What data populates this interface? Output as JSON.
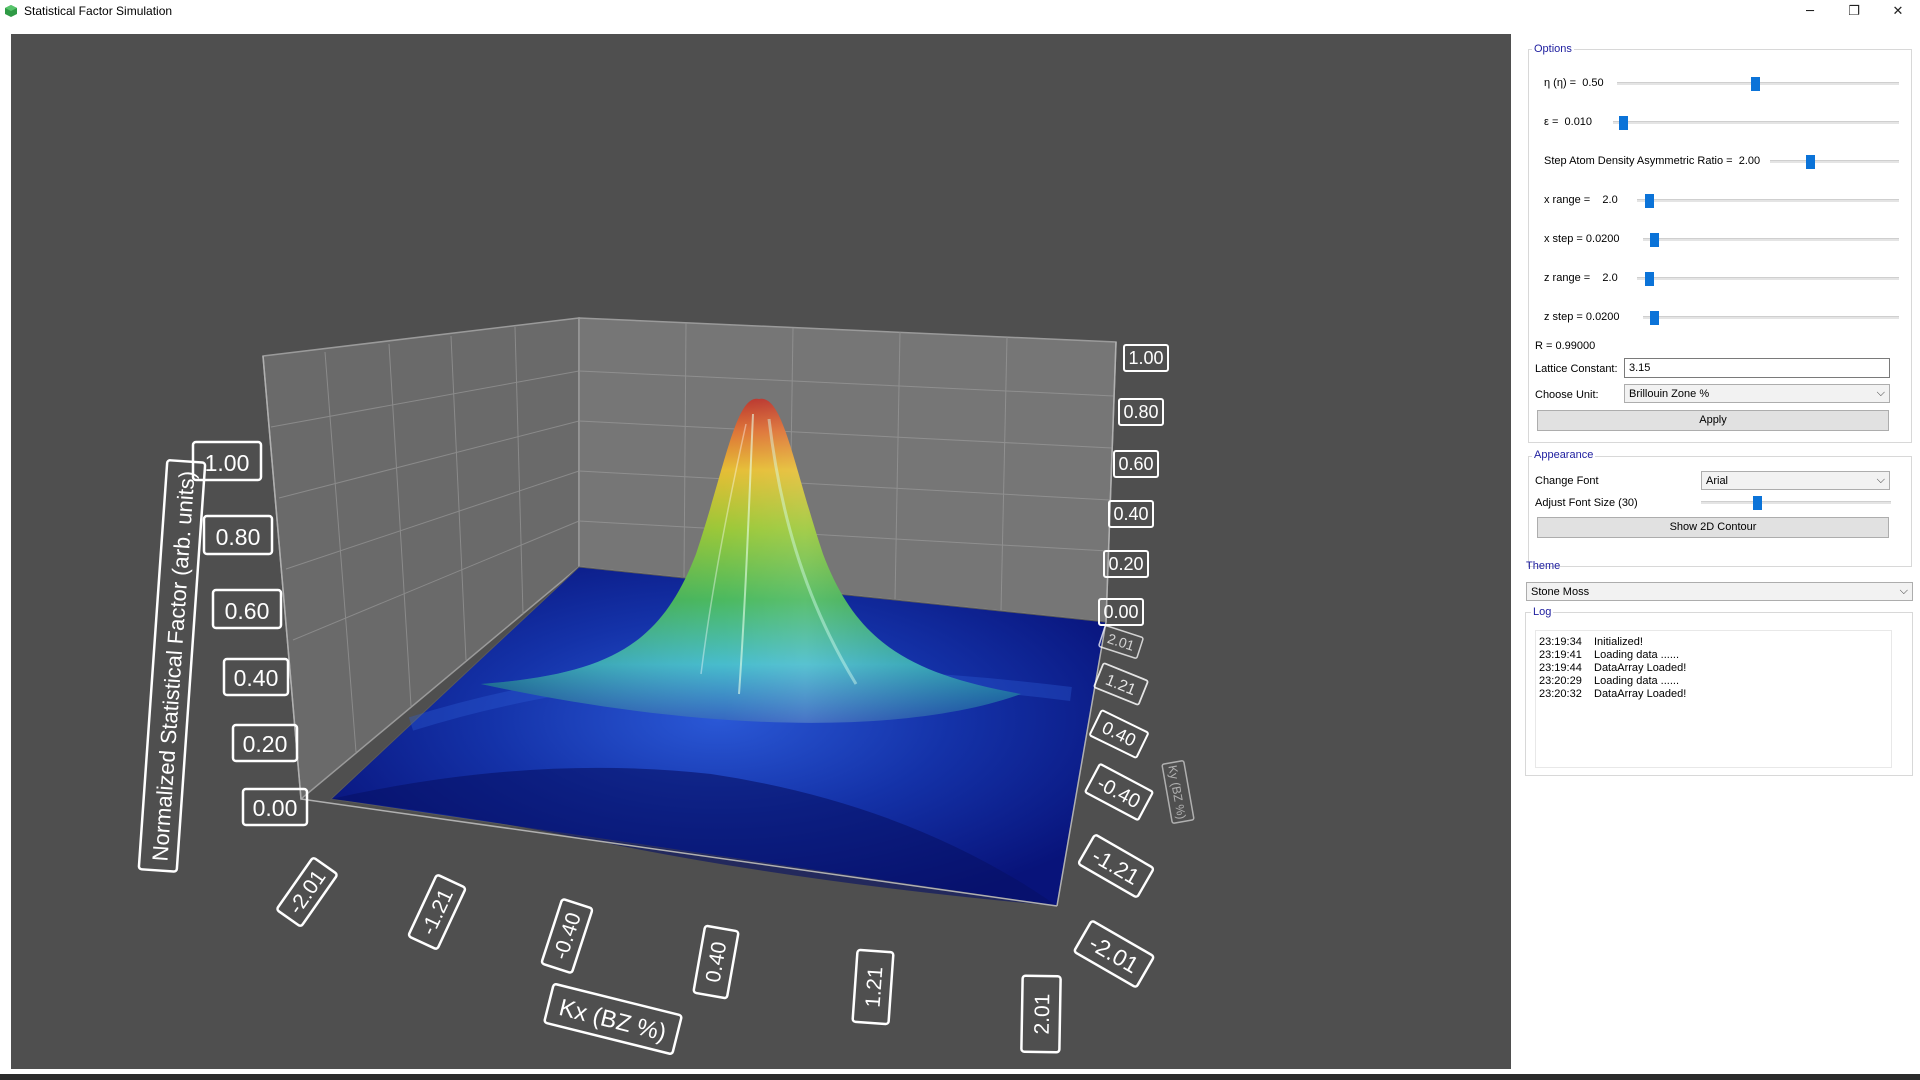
{
  "window": {
    "title": "Statistical Factor Simulation",
    "minimize": "─",
    "maximize": "❐",
    "close": "✕"
  },
  "plot": {
    "y_axis_title": "Normalized Statistical Factor (arb. units)",
    "x_axis_title": "Kx (BZ %)",
    "z_axis_title": "Ky (BZ %)",
    "y_ticks_left": [
      "1.00",
      "0.80",
      "0.60",
      "0.40",
      "0.20",
      "0.00"
    ],
    "y_ticks_right": [
      "1.00",
      "0.80",
      "0.60",
      "0.40",
      "0.20",
      "0.00"
    ],
    "x_ticks": [
      "-2.01",
      "-1.21",
      "-0.40",
      "0.40",
      "1.21",
      "2.01"
    ],
    "z_ticks": [
      "2.01",
      "1.21",
      "0.40",
      "-0.40",
      "-1.21",
      "-2.01"
    ]
  },
  "options": {
    "title": "Options",
    "eta": {
      "label": "η (η) =",
      "value": "0.50",
      "level": 0.49
    },
    "epsilon": {
      "label": "ε =",
      "value": "0.010",
      "level": 0.02
    },
    "step_ratio": {
      "label": "Step Atom Density Asymmetric Ratio =",
      "value": "2.00",
      "level": 0.3
    },
    "x_range": {
      "label": "x range =",
      "value": "2.0",
      "level": 0.03
    },
    "x_step": {
      "label": "x step =",
      "value": "0.0200",
      "level": 0.03
    },
    "z_range": {
      "label": "z range =",
      "value": "2.0",
      "level": 0.03
    },
    "z_step": {
      "label": "z step =",
      "value": "0.0200",
      "level": 0.03
    },
    "r_text": "R = 0.99000",
    "lattice_label": "Lattice Constant:",
    "lattice_value": "3.15",
    "unit_label": "Choose Unit:",
    "unit_value": "Brillouin Zone %",
    "apply": "Apply"
  },
  "appearance": {
    "title": "Appearance",
    "font_label": "Change Font",
    "font_value": "Arial",
    "font_size_label": "Adjust Font Size (30)",
    "font_size_level": 0.29,
    "contour_button": "Show 2D Contour"
  },
  "theme": {
    "title": "Theme",
    "value": "Stone Moss"
  },
  "log": {
    "title": "Log",
    "entries": [
      {
        "time": "23:19:34",
        "msg": "Initialized!"
      },
      {
        "time": "23:19:41",
        "msg": "Loading data ......"
      },
      {
        "time": "23:19:44",
        "msg": "DataArray Loaded!"
      },
      {
        "time": "23:20:29",
        "msg": "Loading data ......"
      },
      {
        "time": "23:20:32",
        "msg": "DataArray Loaded!"
      }
    ]
  },
  "colors": {
    "background": "#4f4f4f",
    "surface_low": "#0a1a8a",
    "surface_high": "#c42010",
    "slider_handle": "#0b73d8",
    "group_title": "#2020a0"
  }
}
